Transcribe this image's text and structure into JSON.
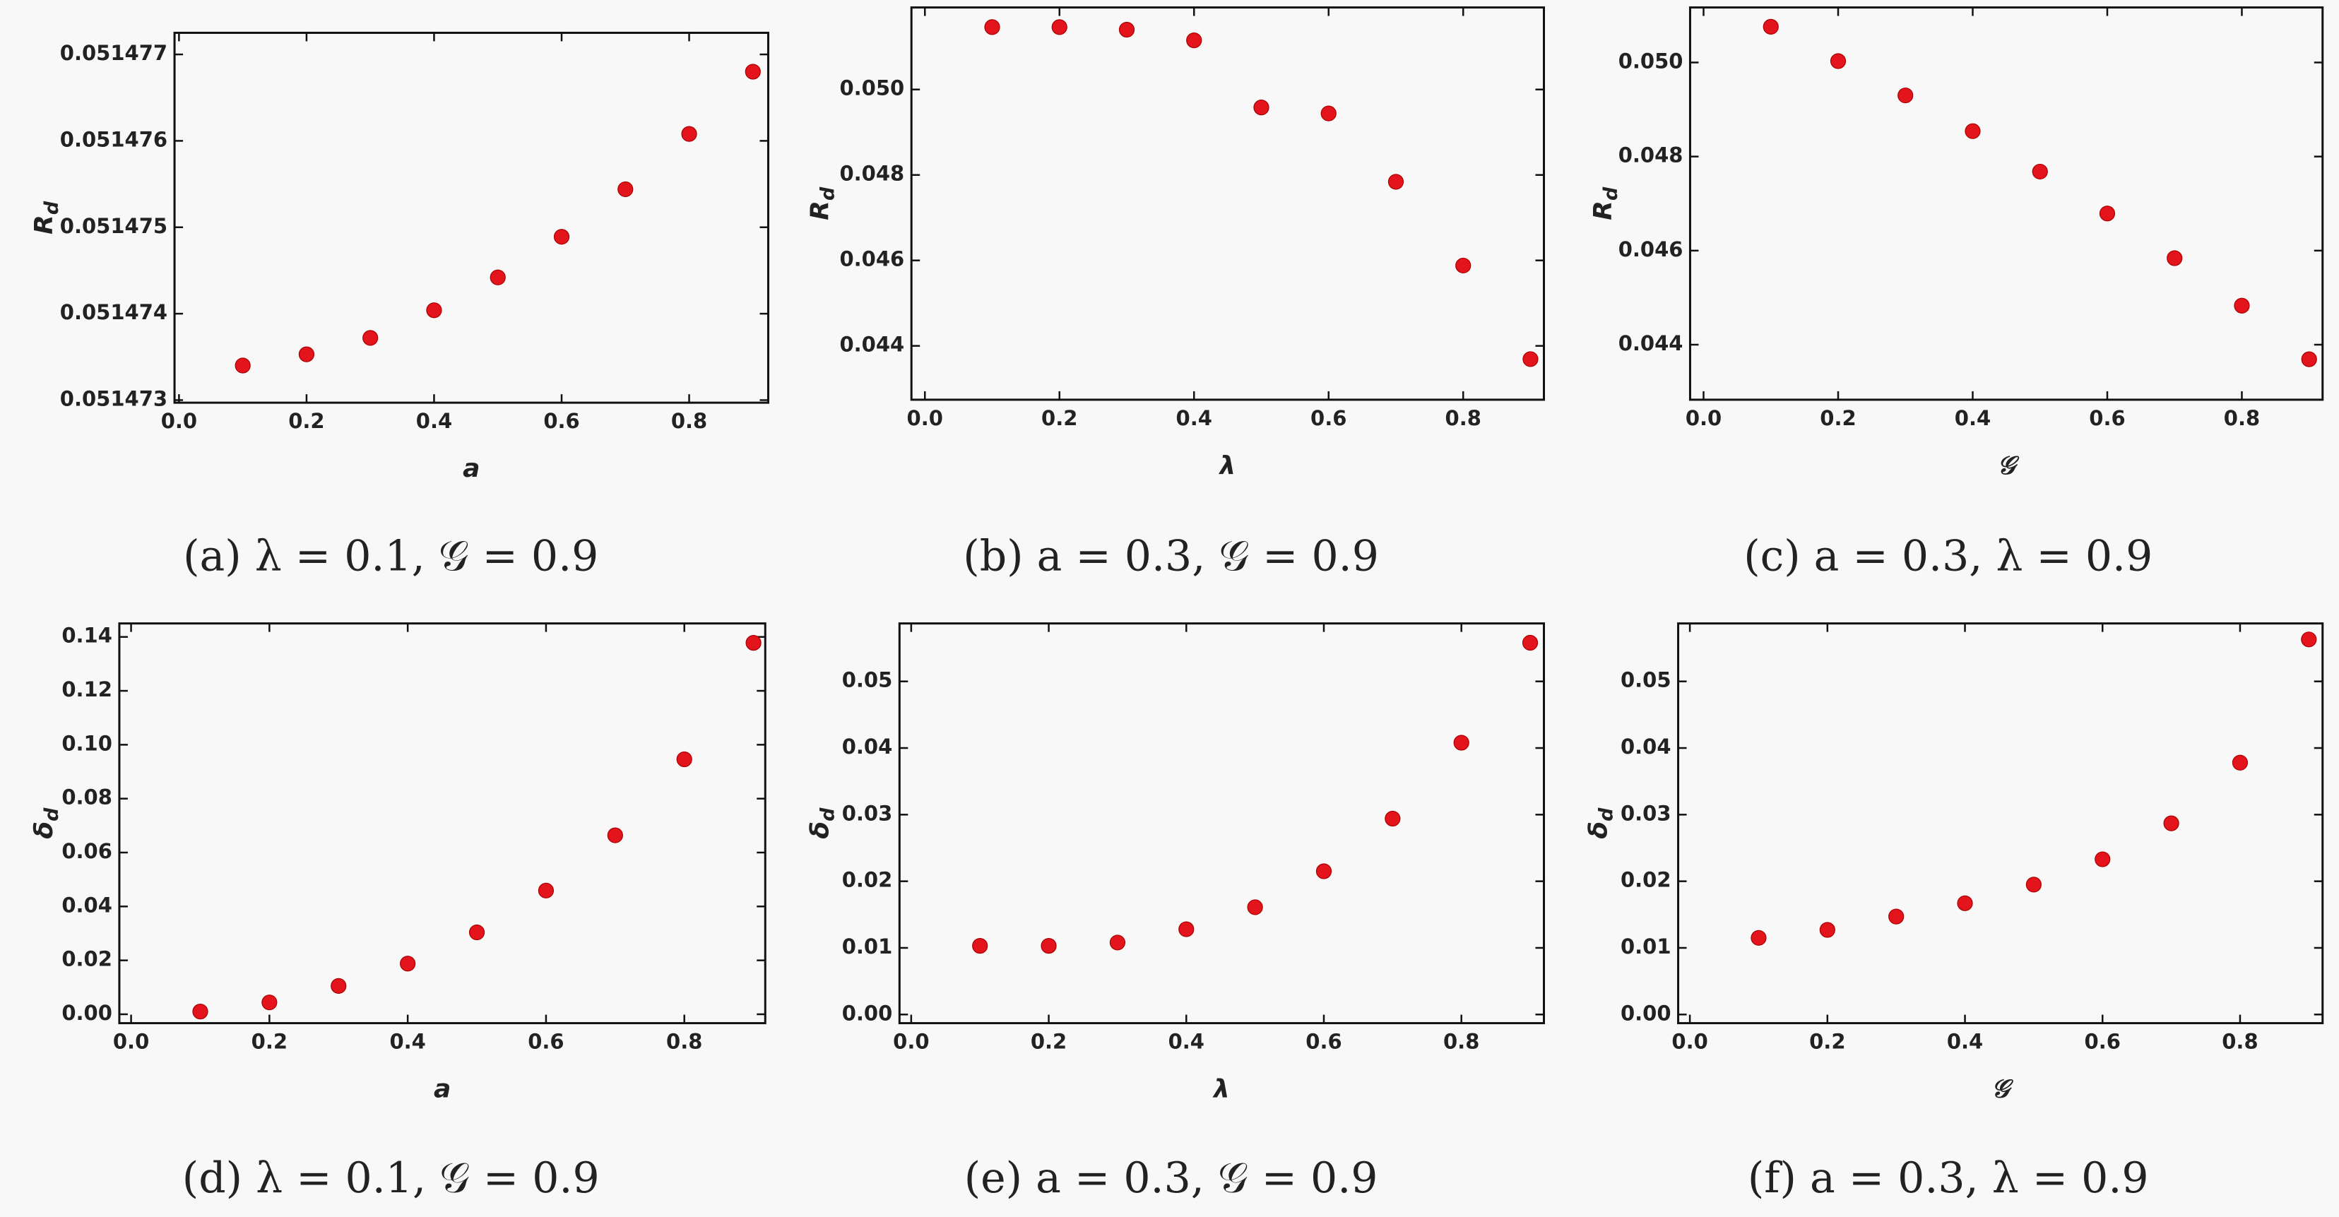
{
  "chart_data": [
    {
      "type": "scatter",
      "caption": "(a)  λ = 0.1, 𝒢 = 0.9",
      "xlabel": "a",
      "ylabel": "R",
      "ylabel_subscript": "d",
      "color": "#e3141c",
      "x": [
        0.1,
        0.2,
        0.3,
        0.4,
        0.5,
        0.6,
        0.7,
        0.8,
        0.9
      ],
      "values": [
        0.0514734,
        0.05147353,
        0.05147372,
        0.05147404,
        0.05147442,
        0.05147489,
        0.05147544,
        0.05147608,
        0.0514768
      ],
      "xlim": [
        -0.007,
        0.924
      ],
      "ylim": [
        0.05147297,
        0.05147725
      ],
      "xticks": [
        {
          "value": 0,
          "label": "0.0"
        },
        0.2,
        0.4,
        0.6,
        0.8
      ],
      "yticks": [
        0.051473,
        0.051474,
        0.051475,
        0.051476,
        0.051477
      ]
    },
    {
      "type": "scatter",
      "caption": "(b)  a = 0.3, 𝒢 = 0.9",
      "xlabel": "λ",
      "ylabel": "R",
      "ylabel_subscript": "d",
      "color": "#e3141c",
      "x": [
        0.1,
        0.2,
        0.3,
        0.4,
        0.5,
        0.6,
        0.7,
        0.8,
        0.9
      ],
      "values": [
        0.05146,
        0.05146,
        0.0514,
        0.05115,
        0.04958,
        0.04944,
        0.04784,
        0.04588,
        0.04369
      ],
      "xlim": [
        -0.02,
        0.92
      ],
      "ylim": [
        0.04274,
        0.05192
      ],
      "xticks": [
        {
          "value": 0,
          "label": "0.0"
        },
        0.2,
        0.4,
        0.6,
        0.8
      ],
      "yticks": [
        0.044,
        0.046,
        0.048,
        {
          "value": 0.05,
          "label": "0.050"
        }
      ]
    },
    {
      "type": "scatter",
      "caption": "(c)  a = 0.3, λ = 0.9",
      "xlabel": "𝒢",
      "ylabel": "R",
      "ylabel_subscript": "d",
      "color": "#e3141c",
      "x": [
        0.1,
        0.2,
        0.3,
        0.4,
        0.5,
        0.6,
        0.7,
        0.8,
        0.9
      ],
      "values": [
        0.05076,
        0.05003,
        0.0493,
        0.04854,
        0.04768,
        0.04679,
        0.04584,
        0.04483,
        0.04369
      ],
      "xlim": [
        -0.02,
        0.92
      ],
      "ylim": [
        0.04283,
        0.05117
      ],
      "xticks": [
        {
          "value": 0,
          "label": "0.0"
        },
        0.2,
        0.4,
        0.6,
        0.8
      ],
      "yticks": [
        0.044,
        0.046,
        0.048,
        {
          "value": 0.05,
          "label": "0.050"
        }
      ]
    },
    {
      "type": "scatter",
      "caption": "(d)  λ = 0.1, 𝒢 = 0.9",
      "xlabel": "a",
      "ylabel": "δ",
      "ylabel_subscript": "d",
      "color": "#e3141c",
      "x": [
        0.1,
        0.2,
        0.3,
        0.4,
        0.5,
        0.6,
        0.7,
        0.8,
        0.9
      ],
      "values": [
        0.001,
        0.0044,
        0.0105,
        0.0188,
        0.0304,
        0.0459,
        0.0664,
        0.0946,
        0.1378
      ],
      "xlim": [
        -0.017,
        0.917
      ],
      "ylim": [
        -0.0033,
        0.145
      ],
      "xticks": [
        {
          "value": 0,
          "label": "0.0"
        },
        0.2,
        0.4,
        0.6,
        0.8
      ],
      "yticks": [
        {
          "value": 0,
          "label": "0.00"
        },
        0.02,
        0.04,
        0.06,
        0.08,
        {
          "value": 0.1,
          "label": "0.10"
        },
        0.12,
        0.14
      ]
    },
    {
      "type": "scatter",
      "caption": "(e)  a = 0.3, 𝒢 = 0.9",
      "xlabel": "λ",
      "ylabel": "δ",
      "ylabel_subscript": "d",
      "color": "#e3141c",
      "x": [
        0.1,
        0.2,
        0.3,
        0.4,
        0.5,
        0.6,
        0.7,
        0.8,
        0.9
      ],
      "values": [
        0.0103,
        0.0103,
        0.0108,
        0.0128,
        0.0161,
        0.0215,
        0.0294,
        0.0408,
        0.0558
      ],
      "xlim": [
        -0.017,
        0.92
      ],
      "ylim": [
        -0.0013,
        0.0587
      ],
      "xticks": [
        {
          "value": 0,
          "label": "0.0"
        },
        0.2,
        0.4,
        0.6,
        0.8
      ],
      "yticks": [
        {
          "value": 0,
          "label": "0.00"
        },
        0.01,
        0.02,
        0.03,
        0.04,
        0.05
      ]
    },
    {
      "type": "scatter",
      "caption": "(f)  a = 0.3, λ = 0.9",
      "xlabel": "𝒢",
      "ylabel": "δ",
      "ylabel_subscript": "d",
      "color": "#e3141c",
      "x": [
        0.1,
        0.2,
        0.3,
        0.4,
        0.5,
        0.6,
        0.7,
        0.8,
        0.9
      ],
      "values": [
        0.0115,
        0.0127,
        0.0147,
        0.0167,
        0.0195,
        0.0233,
        0.0287,
        0.0378,
        0.0563
      ],
      "xlim": [
        -0.017,
        0.92
      ],
      "ylim": [
        -0.0013,
        0.0587
      ],
      "xticks": [
        {
          "value": 0,
          "label": "0.0"
        },
        0.2,
        0.4,
        0.6,
        0.8
      ],
      "yticks": [
        {
          "value": 0,
          "label": "0.00"
        },
        0.01,
        0.02,
        0.03,
        0.04,
        0.05
      ]
    }
  ]
}
